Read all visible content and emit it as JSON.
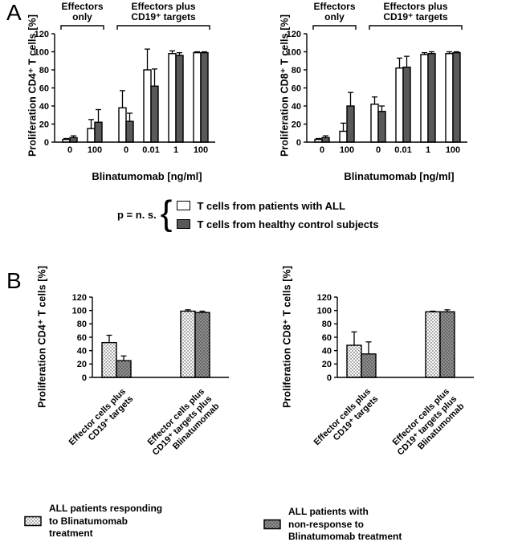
{
  "figure": {
    "panel_a_label": "A",
    "panel_b_label": "B"
  },
  "icons": {
    "brace": "{"
  },
  "colors": {
    "bar_white": "#ffffff",
    "bar_darkgray": "#595959",
    "axis": "#000000"
  },
  "legend_a": {
    "p_label": "p = n. s.",
    "entries": [
      {
        "label": "T cells from patients with ALL",
        "fill": "#ffffff"
      },
      {
        "label": "T cells from healthy control subjects",
        "fill": "#595959"
      }
    ]
  },
  "legend_b": [
    {
      "label": "ALL patients responding\nto Blinatumomab\ntreatment",
      "pattern": "stipple-light"
    },
    {
      "label": "ALL patients with\nnon-response to\nBlinatumomab treatment",
      "pattern": "stipple-dark"
    }
  ],
  "chart_data": [
    {
      "id": "a-cd4",
      "type": "bar",
      "title": "",
      "ylabel": "Proliferation CD4⁺ T cells [%]",
      "xlabel": "Blinatumomab [ng/ml]",
      "ylim": [
        0,
        120
      ],
      "yticks": [
        0,
        20,
        40,
        60,
        80,
        100,
        120
      ],
      "grid": false,
      "groups": [
        {
          "header": [
            "Effectors",
            "only"
          ],
          "categories": [
            "0",
            "100"
          ]
        },
        {
          "header": [
            "Effectors plus",
            "CD19⁺ targets"
          ],
          "categories": [
            "0",
            "0.01",
            "1",
            "100"
          ]
        }
      ],
      "series": [
        {
          "name": "T cells from patients with ALL",
          "style": "white",
          "values": [
            [
              3,
              15
            ],
            [
              38,
              80,
              98,
              99
            ]
          ],
          "errors": [
            [
              1,
              10
            ],
            [
              19,
              23,
              3,
              1
            ]
          ]
        },
        {
          "name": "T cells from healthy control subjects",
          "style": "darkgray",
          "values": [
            [
              5,
              22
            ],
            [
              23,
              62,
              96,
              99
            ]
          ],
          "errors": [
            [
              2,
              14
            ],
            [
              9,
              19,
              3,
              1
            ]
          ]
        }
      ]
    },
    {
      "id": "a-cd8",
      "type": "bar",
      "title": "",
      "ylabel": "Proliferation CD8⁺ T cells [%]",
      "xlabel": "Blinatumomab [ng/ml]",
      "ylim": [
        0,
        120
      ],
      "yticks": [
        0,
        20,
        40,
        60,
        80,
        100,
        120
      ],
      "grid": false,
      "groups": [
        {
          "header": [
            "Effectors",
            "only"
          ],
          "categories": [
            "0",
            "100"
          ]
        },
        {
          "header": [
            "Effectors plus",
            "CD19⁺ targets"
          ],
          "categories": [
            "0",
            "0.01",
            "1",
            "100"
          ]
        }
      ],
      "series": [
        {
          "name": "T cells from patients with ALL",
          "style": "white",
          "values": [
            [
              3,
              12
            ],
            [
              42,
              82,
              97,
              98
            ]
          ],
          "errors": [
            [
              1,
              9
            ],
            [
              8,
              11,
              2,
              2
            ]
          ]
        },
        {
          "name": "T cells from healthy control subjects",
          "style": "darkgray",
          "values": [
            [
              5,
              40
            ],
            [
              34,
              83,
              98,
              99
            ]
          ],
          "errors": [
            [
              2,
              15
            ],
            [
              6,
              12,
              2,
              1
            ]
          ]
        }
      ]
    },
    {
      "id": "b-cd4",
      "type": "bar",
      "title": "",
      "ylabel": "Proliferation CD4⁺ T cells [%]",
      "xlabel": "",
      "ylim": [
        0,
        120
      ],
      "yticks": [
        0,
        20,
        40,
        60,
        80,
        100,
        120
      ],
      "grid": false,
      "groups": [
        {
          "header": null,
          "categories": [
            [
              "Effector cells plus",
              "CD19⁺ targets"
            ]
          ]
        },
        {
          "header": null,
          "categories": [
            [
              "Effector cells plus",
              "CD19⁺ targets plus",
              "Blinatumomab"
            ]
          ]
        }
      ],
      "series": [
        {
          "name": "ALL patients responding to Blinatumomab treatment",
          "style": "stipple-light",
          "values": [
            [
              52
            ],
            [
              99
            ]
          ],
          "errors": [
            [
              11
            ],
            [
              2
            ]
          ]
        },
        {
          "name": "ALL patients with non-response to Blinatumomab treatment",
          "style": "stipple-dark",
          "values": [
            [
              25
            ],
            [
              97
            ]
          ],
          "errors": [
            [
              7
            ],
            [
              2
            ]
          ]
        }
      ]
    },
    {
      "id": "b-cd8",
      "type": "bar",
      "title": "",
      "ylabel": "Proliferation CD8⁺ T cells [%]",
      "xlabel": "",
      "ylim": [
        0,
        120
      ],
      "yticks": [
        0,
        20,
        40,
        60,
        80,
        100,
        120
      ],
      "grid": false,
      "groups": [
        {
          "header": null,
          "categories": [
            [
              "Effector cells plus",
              "CD19⁺ targets"
            ]
          ]
        },
        {
          "header": null,
          "categories": [
            [
              "Effector cells plus",
              "CD19⁺ targets plus",
              "Blinatumomab"
            ]
          ]
        }
      ],
      "series": [
        {
          "name": "ALL patients responding to Blinatumomab treatment",
          "style": "stipple-light",
          "values": [
            [
              48
            ],
            [
              98
            ]
          ],
          "errors": [
            [
              20
            ],
            [
              1
            ]
          ]
        },
        {
          "name": "ALL patients with non-response to Blinatumomab treatment",
          "style": "stipple-dark",
          "values": [
            [
              35
            ],
            [
              98
            ]
          ],
          "errors": [
            [
              18
            ],
            [
              3
            ]
          ]
        }
      ]
    }
  ]
}
